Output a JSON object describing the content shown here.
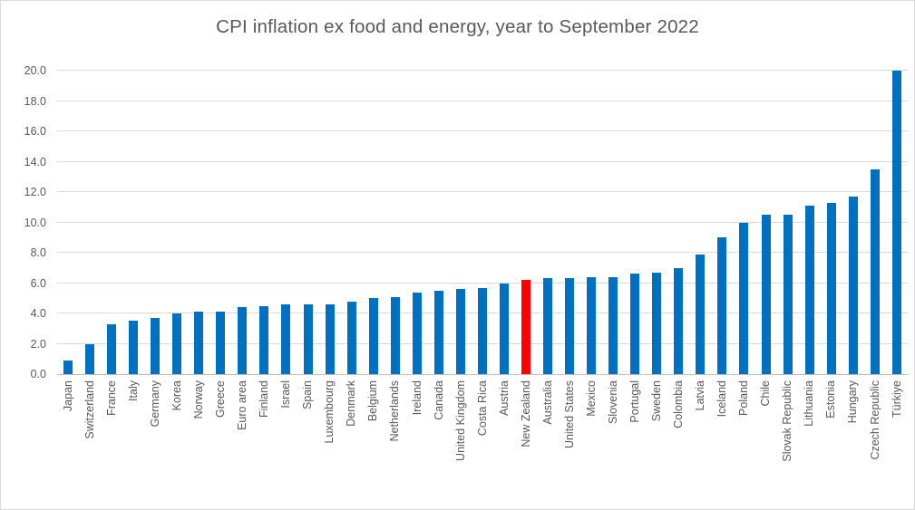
{
  "window": {
    "background_color": "#FFFFFF",
    "border_color": "#D9D9D9"
  },
  "chart_data": {
    "type": "bar",
    "title": "CPI inflation ex food and energy, year to September 2022",
    "categories": [
      "Japan",
      "Switzerland",
      "France",
      "Italy",
      "Germany",
      "Korea",
      "Norway",
      "Greece",
      "Euro area",
      "Finland",
      "Israel",
      "Spain",
      "Luxembourg",
      "Denmark",
      "Belgium",
      "Netherlands",
      "Ireland",
      "Canada",
      "United Kingdom",
      "Costa Rica",
      "Austria",
      "New Zealand",
      "Australia",
      "United States",
      "Mexico",
      "Slovenia",
      "Portugal",
      "Sweden",
      "Colombia",
      "Latvia",
      "Iceland",
      "Poland",
      "Chile",
      "Slovak Republic",
      "Lithuania",
      "Estonia",
      "Hungary",
      "Czech Republic",
      "Türkiye"
    ],
    "values": [
      0.9,
      2.0,
      3.3,
      3.5,
      3.7,
      4.0,
      4.1,
      4.1,
      4.4,
      4.5,
      4.6,
      4.6,
      4.6,
      4.8,
      5.0,
      5.1,
      5.4,
      5.5,
      5.6,
      5.7,
      6.0,
      6.2,
      6.3,
      6.3,
      6.4,
      6.4,
      6.6,
      6.7,
      7.0,
      7.9,
      9.0,
      10.0,
      10.5,
      10.5,
      11.1,
      11.3,
      11.7,
      13.5,
      20.0
    ],
    "highlight_category": "New Zealand",
    "xlabel": "",
    "ylabel": "",
    "ylim": [
      0,
      20
    ],
    "ytick_step": 2,
    "ytick_decimals": 1,
    "grid": true,
    "legend": false,
    "colors": {
      "bar": "#0070C0",
      "highlight_bar": "#FF0000",
      "title_text": "#595959",
      "tick_text": "#595959",
      "gridline": "#D9D9D9",
      "axis_line": "#BFBFBF"
    }
  }
}
